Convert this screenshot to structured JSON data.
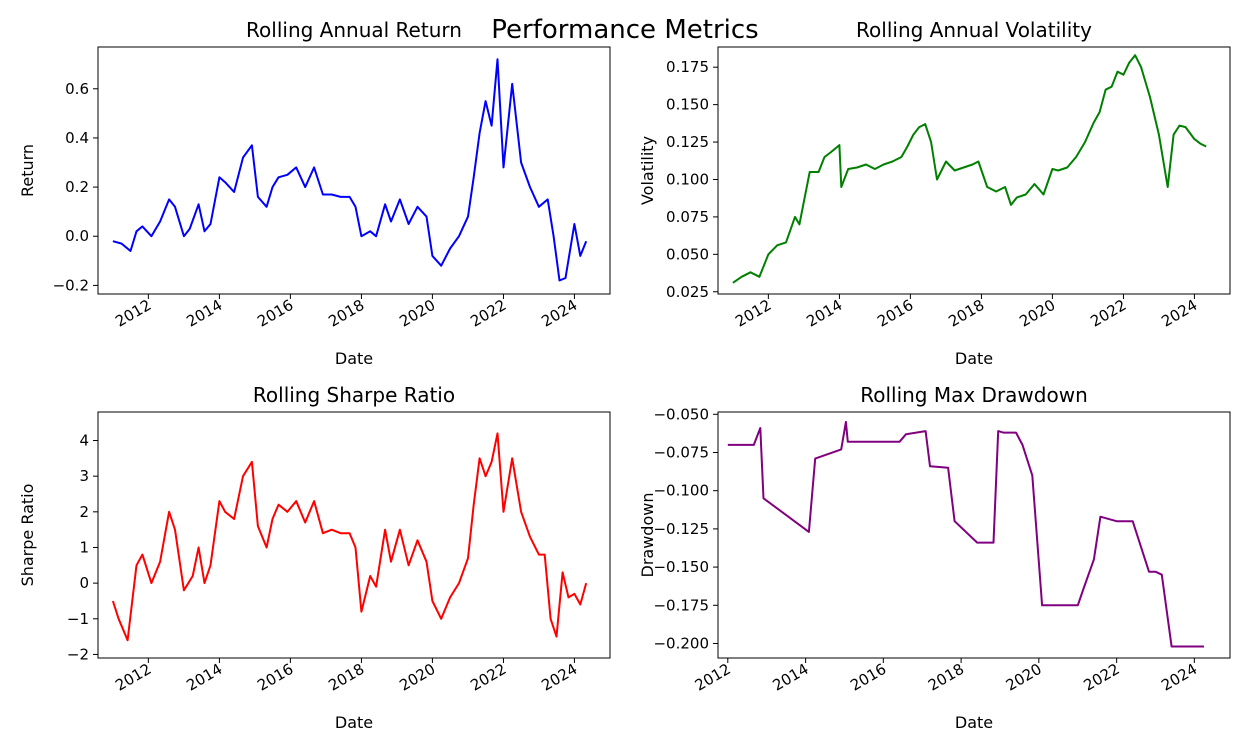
{
  "figure": {
    "suptitle": "Performance Metrics"
  },
  "chart_data": [
    {
      "type": "line",
      "title": "Rolling Annual Return",
      "xlabel": "Date",
      "ylabel": "Return",
      "color": "#0000ff",
      "xlim": [
        "2010-08-01",
        "2025-01-01"
      ],
      "ylim": [
        -0.235,
        0.77
      ],
      "yticks": [
        -0.2,
        0.0,
        0.2,
        0.4,
        0.6
      ],
      "ytick_labels": [
        "−0.2",
        "0.0",
        "0.2",
        "0.4",
        "0.6"
      ],
      "xticks": [
        "2012-01-01",
        "2014-01-01",
        "2016-01-01",
        "2018-01-01",
        "2020-01-01",
        "2022-01-01",
        "2024-01-01"
      ],
      "xtick_labels": [
        "2012",
        "2014",
        "2016",
        "2018",
        "2020",
        "2022",
        "2024"
      ],
      "series": [
        {
          "x": [
            "2011-01-01",
            "2011-04-01",
            "2011-07-01",
            "2011-09-01",
            "2011-11-01",
            "2012-02-01",
            "2012-05-01",
            "2012-08-01",
            "2012-10-01",
            "2013-01-01",
            "2013-03-01",
            "2013-06-01",
            "2013-08-01",
            "2013-10-01",
            "2014-01-01",
            "2014-03-01",
            "2014-06-01",
            "2014-09-01",
            "2014-12-01",
            "2015-02-01",
            "2015-05-01",
            "2015-07-01",
            "2015-09-01",
            "2015-12-01",
            "2016-03-01",
            "2016-06-01",
            "2016-09-01",
            "2016-12-01",
            "2017-03-01",
            "2017-06-01",
            "2017-09-01",
            "2017-11-01",
            "2018-01-01",
            "2018-04-01",
            "2018-06-01",
            "2018-09-01",
            "2018-11-01",
            "2019-02-01",
            "2019-05-01",
            "2019-08-01",
            "2019-11-01",
            "2020-01-01",
            "2020-04-01",
            "2020-07-01",
            "2020-10-01",
            "2021-01-01",
            "2021-03-01",
            "2021-05-01",
            "2021-07-01",
            "2021-09-01",
            "2021-11-01",
            "2022-01-01",
            "2022-04-01",
            "2022-07-01",
            "2022-10-01",
            "2023-01-01",
            "2023-04-01",
            "2023-06-01",
            "2023-08-01",
            "2023-10-01",
            "2024-01-01",
            "2024-03-01",
            "2024-05-01"
          ],
          "y": [
            -0.02,
            -0.03,
            -0.06,
            0.02,
            0.04,
            0.0,
            0.06,
            0.15,
            0.12,
            0.0,
            0.03,
            0.13,
            0.02,
            0.05,
            0.24,
            0.22,
            0.18,
            0.32,
            0.37,
            0.16,
            0.12,
            0.2,
            0.24,
            0.25,
            0.28,
            0.2,
            0.28,
            0.17,
            0.17,
            0.16,
            0.16,
            0.12,
            0.0,
            0.02,
            0.0,
            0.13,
            0.06,
            0.15,
            0.05,
            0.12,
            0.08,
            -0.08,
            -0.12,
            -0.05,
            0.0,
            0.08,
            0.24,
            0.42,
            0.55,
            0.45,
            0.72,
            0.28,
            0.62,
            0.3,
            0.2,
            0.12,
            0.15,
            0.0,
            -0.18,
            -0.17,
            0.05,
            -0.08,
            -0.02
          ]
        }
      ]
    },
    {
      "type": "line",
      "title": "Rolling Annual Volatility",
      "xlabel": "Date",
      "ylabel": "Volatility",
      "color": "#008000",
      "xlim": [
        "2010-08-01",
        "2025-01-01"
      ],
      "ylim": [
        0.0235,
        0.1885
      ],
      "yticks": [
        0.025,
        0.05,
        0.075,
        0.1,
        0.125,
        0.15,
        0.175
      ],
      "ytick_labels": [
        "0.025",
        "0.050",
        "0.075",
        "0.100",
        "0.125",
        "0.150",
        "0.175"
      ],
      "xticks": [
        "2012-01-01",
        "2014-01-01",
        "2016-01-01",
        "2018-01-01",
        "2020-01-01",
        "2022-01-01",
        "2024-01-01"
      ],
      "xtick_labels": [
        "2012",
        "2014",
        "2016",
        "2018",
        "2020",
        "2022",
        "2024"
      ],
      "series": [
        {
          "x": [
            "2011-01-01",
            "2011-04-01",
            "2011-07-01",
            "2011-10-01",
            "2012-01-01",
            "2012-04-01",
            "2012-07-01",
            "2012-10-01",
            "2012-11-15",
            "2013-03-01",
            "2013-06-01",
            "2013-08-01",
            "2013-10-01",
            "2014-01-01",
            "2014-01-20",
            "2014-04-01",
            "2014-07-01",
            "2014-10-01",
            "2015-01-01",
            "2015-04-01",
            "2015-07-01",
            "2015-10-01",
            "2015-12-01",
            "2016-02-01",
            "2016-04-01",
            "2016-06-01",
            "2016-08-01",
            "2016-10-01",
            "2017-01-01",
            "2017-04-01",
            "2017-07-01",
            "2017-10-01",
            "2017-12-01",
            "2018-03-01",
            "2018-06-01",
            "2018-09-01",
            "2018-11-01",
            "2019-01-01",
            "2019-04-01",
            "2019-07-01",
            "2019-10-01",
            "2020-01-01",
            "2020-03-01",
            "2020-06-01",
            "2020-09-01",
            "2020-12-01",
            "2021-03-01",
            "2021-05-01",
            "2021-07-01",
            "2021-09-01",
            "2021-11-01",
            "2022-01-01",
            "2022-03-01",
            "2022-05-01",
            "2022-07-01",
            "2022-10-01",
            "2023-01-01",
            "2023-04-01",
            "2023-06-01",
            "2023-08-01",
            "2023-10-01",
            "2024-01-01",
            "2024-03-01",
            "2024-05-01"
          ],
          "y": [
            0.031,
            0.035,
            0.038,
            0.035,
            0.05,
            0.056,
            0.058,
            0.075,
            0.07,
            0.105,
            0.105,
            0.115,
            0.118,
            0.123,
            0.095,
            0.107,
            0.108,
            0.11,
            0.107,
            0.11,
            0.112,
            0.115,
            0.122,
            0.13,
            0.135,
            0.137,
            0.125,
            0.1,
            0.112,
            0.106,
            0.108,
            0.11,
            0.112,
            0.095,
            0.092,
            0.095,
            0.083,
            0.088,
            0.09,
            0.097,
            0.09,
            0.107,
            0.106,
            0.108,
            0.115,
            0.125,
            0.138,
            0.145,
            0.16,
            0.162,
            0.172,
            0.17,
            0.178,
            0.183,
            0.175,
            0.155,
            0.13,
            0.095,
            0.13,
            0.136,
            0.135,
            0.127,
            0.124,
            0.122
          ]
        }
      ]
    },
    {
      "type": "line",
      "title": "Rolling Sharpe Ratio",
      "xlabel": "Date",
      "ylabel": "Sharpe Ratio",
      "color": "#ff0000",
      "xlim": [
        "2010-08-01",
        "2025-01-01"
      ],
      "ylim": [
        -2.1,
        4.8
      ],
      "yticks": [
        -2,
        -1,
        0,
        1,
        2,
        3,
        4
      ],
      "ytick_labels": [
        "−2",
        "−1",
        "0",
        "1",
        "2",
        "3",
        "4"
      ],
      "xticks": [
        "2012-01-01",
        "2014-01-01",
        "2016-01-01",
        "2018-01-01",
        "2020-01-01",
        "2022-01-01",
        "2024-01-01"
      ],
      "xtick_labels": [
        "2012",
        "2014",
        "2016",
        "2018",
        "2020",
        "2022",
        "2024"
      ],
      "series": [
        {
          "x": [
            "2011-01-01",
            "2011-03-01",
            "2011-06-01",
            "2011-09-01",
            "2011-11-01",
            "2012-02-01",
            "2012-05-01",
            "2012-08-01",
            "2012-10-01",
            "2013-01-01",
            "2013-04-01",
            "2013-06-01",
            "2013-08-01",
            "2013-10-01",
            "2014-01-01",
            "2014-03-01",
            "2014-06-01",
            "2014-09-01",
            "2014-12-01",
            "2015-02-01",
            "2015-05-01",
            "2015-07-01",
            "2015-09-01",
            "2015-12-01",
            "2016-03-01",
            "2016-06-01",
            "2016-09-01",
            "2016-12-01",
            "2017-03-01",
            "2017-06-01",
            "2017-09-01",
            "2017-11-01",
            "2018-01-01",
            "2018-04-01",
            "2018-06-01",
            "2018-09-01",
            "2018-11-01",
            "2019-02-01",
            "2019-05-01",
            "2019-08-01",
            "2019-11-01",
            "2020-01-01",
            "2020-04-01",
            "2020-07-01",
            "2020-10-01",
            "2021-01-01",
            "2021-03-01",
            "2021-05-01",
            "2021-07-01",
            "2021-09-01",
            "2021-11-01",
            "2022-01-01",
            "2022-04-01",
            "2022-07-01",
            "2022-10-01",
            "2023-01-01",
            "2023-03-01",
            "2023-05-01",
            "2023-07-01",
            "2023-09-01",
            "2023-11-01",
            "2024-01-01",
            "2024-03-01",
            "2024-05-01"
          ],
          "y": [
            -0.5,
            -1.0,
            -1.6,
            0.5,
            0.8,
            0.0,
            0.6,
            2.0,
            1.5,
            -0.2,
            0.2,
            1.0,
            0.0,
            0.5,
            2.3,
            2.0,
            1.8,
            3.0,
            3.4,
            1.6,
            1.0,
            1.8,
            2.2,
            2.0,
            2.3,
            1.7,
            2.3,
            1.4,
            1.5,
            1.4,
            1.4,
            1.0,
            -0.8,
            0.2,
            -0.1,
            1.5,
            0.6,
            1.5,
            0.5,
            1.2,
            0.6,
            -0.5,
            -1.0,
            -0.4,
            0.0,
            0.7,
            2.2,
            3.5,
            3.0,
            3.4,
            4.2,
            2.0,
            3.5,
            2.0,
            1.3,
            0.8,
            0.8,
            -1.0,
            -1.5,
            0.3,
            -0.4,
            -0.3,
            -0.6,
            0.0
          ]
        }
      ]
    },
    {
      "type": "line",
      "title": "Rolling Max Drawdown",
      "xlabel": "Date",
      "ylabel": "Drawdown",
      "color": "#800080",
      "step": true,
      "xlim": [
        "2011-10-01",
        "2024-12-01"
      ],
      "ylim": [
        -0.2095,
        -0.0485
      ],
      "yticks": [
        -0.05,
        -0.075,
        -0.1,
        -0.125,
        -0.15,
        -0.175,
        -0.2
      ],
      "ytick_labels": [
        "−0.050",
        "−0.075",
        "−0.100",
        "−0.125",
        "−0.150",
        "−0.175",
        "−0.200"
      ],
      "xticks": [
        "2012-01-01",
        "2014-01-01",
        "2016-01-01",
        "2018-01-01",
        "2020-01-01",
        "2022-01-01",
        "2024-01-01"
      ],
      "xtick_labels": [
        "2012",
        "2014",
        "2016",
        "2018",
        "2020",
        "2022",
        "2024"
      ],
      "series": [
        {
          "x": [
            "2012-01-01",
            "2012-09-01",
            "2012-11-01",
            "2012-12-01",
            "2014-02-01",
            "2014-04-01",
            "2014-12-01",
            "2015-01-15",
            "2015-02-01",
            "2016-06-01",
            "2016-08-01",
            "2017-02-01",
            "2017-03-15",
            "2017-09-01",
            "2017-11-01",
            "2018-06-01",
            "2018-11-01",
            "2018-12-15",
            "2019-02-01",
            "2019-06-01",
            "2019-08-01",
            "2019-11-01",
            "2020-02-01",
            "2021-01-01",
            "2021-03-01",
            "2021-06-01",
            "2021-08-01",
            "2022-01-01",
            "2022-06-01",
            "2022-11-01",
            "2023-01-01",
            "2023-03-01",
            "2023-06-01",
            "2024-04-01"
          ],
          "y": [
            -0.07,
            -0.07,
            -0.059,
            -0.105,
            -0.127,
            -0.079,
            -0.073,
            -0.055,
            -0.068,
            -0.068,
            -0.063,
            -0.061,
            -0.084,
            -0.085,
            -0.12,
            -0.134,
            -0.134,
            -0.061,
            -0.062,
            -0.062,
            -0.07,
            -0.09,
            -0.175,
            -0.175,
            -0.163,
            -0.145,
            -0.117,
            -0.12,
            -0.12,
            -0.153,
            -0.153,
            -0.155,
            -0.202,
            -0.202
          ]
        }
      ]
    }
  ]
}
